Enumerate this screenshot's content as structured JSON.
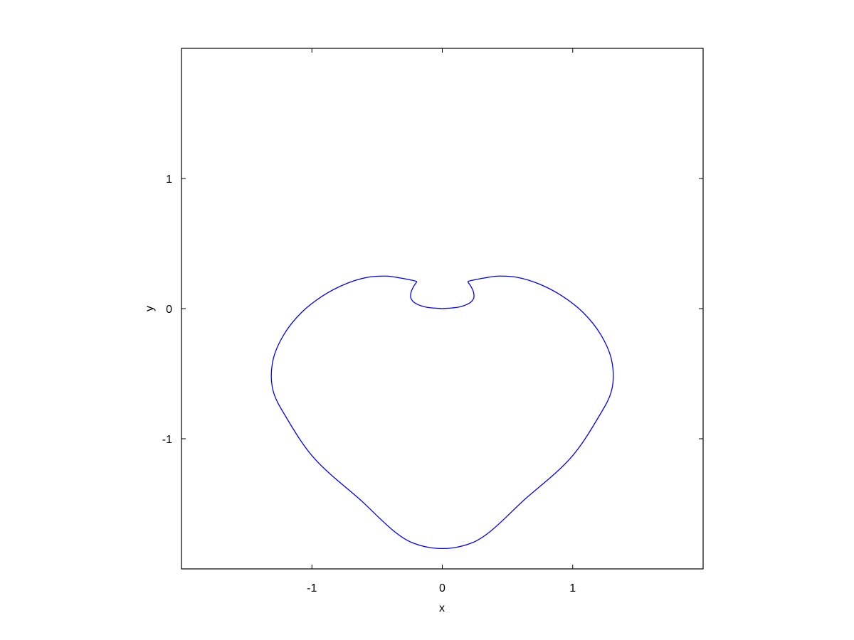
{
  "chart_data": {
    "type": "line",
    "title": "",
    "xlabel": "x",
    "ylabel": "y",
    "xlim": [
      -2,
      2
    ],
    "ylim": [
      -2,
      2
    ],
    "xticks": [
      -1,
      0,
      1
    ],
    "yticks": [
      -1,
      0,
      1
    ],
    "xtick_labels": [
      "-1",
      "0",
      "1"
    ],
    "ytick_labels": [
      "-1",
      "0",
      "1"
    ],
    "grid": false,
    "legend": "none",
    "series": [
      {
        "color": "#0000ff",
        "x": [
          0.0,
          0.122,
          0.204,
          0.24,
          0.24,
          0.22,
          0.2,
          0.2,
          0.24,
          0.32,
          0.433,
          0.577,
          0.741,
          0.914,
          1.08,
          1.215,
          1.299,
          1.3,
          1.2,
          0.982,
          0.65,
          0.227,
          -0.227,
          -0.65,
          -0.982,
          -1.2,
          -1.3,
          -1.299,
          -1.215,
          -1.08,
          -0.914,
          -0.741,
          -0.577,
          -0.433,
          -0.32,
          -0.24,
          -0.2,
          -0.2,
          -0.22,
          -0.24,
          -0.24,
          -0.204,
          -0.122,
          0.0
        ],
        "y": [
          0.0,
          0.011,
          0.04,
          0.078,
          0.124,
          0.17,
          0.2,
          0.21,
          0.22,
          0.235,
          0.25,
          0.24,
          0.19,
          0.1,
          -0.03,
          -0.2,
          -0.4,
          -0.62,
          -0.83,
          -1.15,
          -1.45,
          -1.8,
          -1.8,
          -1.45,
          -1.15,
          -0.83,
          -0.62,
          -0.4,
          -0.2,
          -0.03,
          0.1,
          0.19,
          0.24,
          0.25,
          0.235,
          0.22,
          0.21,
          0.2,
          0.17,
          0.124,
          0.078,
          0.04,
          0.011,
          0.0
        ]
      }
    ]
  }
}
